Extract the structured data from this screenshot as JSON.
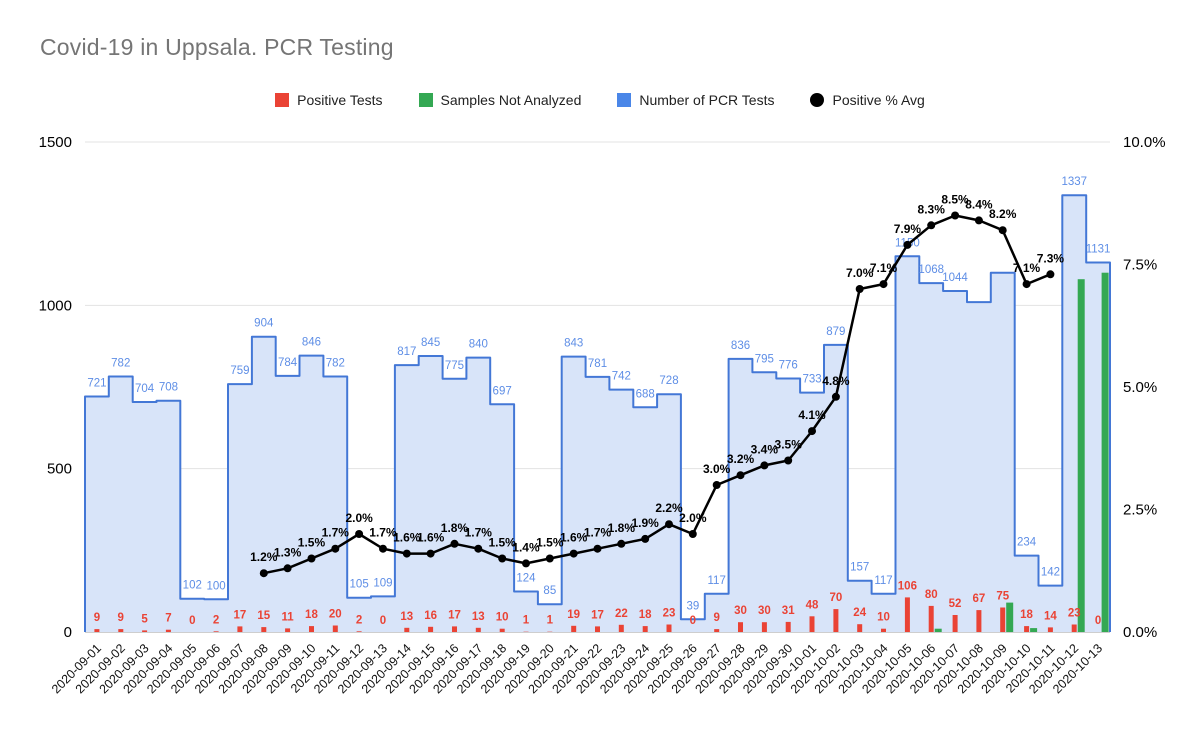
{
  "title": "Covid-19 in Uppsala. PCR Testing",
  "legend": {
    "items": [
      {
        "label": "Positive Tests",
        "color": "#ea4335",
        "shape": "square"
      },
      {
        "label": "Samples Not Analyzed",
        "color": "#34a853",
        "shape": "square"
      },
      {
        "label": "Number of PCR Tests",
        "color": "#4a86e8",
        "shape": "square"
      },
      {
        "label": "Positive % Avg",
        "color": "#000000",
        "shape": "circle"
      }
    ]
  },
  "chart_data": {
    "type": "combo",
    "title": "Covid-19 in Uppsala. PCR Testing",
    "legend_position": "top",
    "grid": "horizontal",
    "x": [
      "2020-09-01",
      "2020-09-02",
      "2020-09-03",
      "2020-09-04",
      "2020-09-05",
      "2020-09-06",
      "2020-09-07",
      "2020-09-08",
      "2020-09-09",
      "2020-09-10",
      "2020-09-11",
      "2020-09-12",
      "2020-09-13",
      "2020-09-14",
      "2020-09-15",
      "2020-09-16",
      "2020-09-17",
      "2020-09-18",
      "2020-09-19",
      "2020-09-20",
      "2020-09-21",
      "2020-09-22",
      "2020-09-23",
      "2020-09-24",
      "2020-09-25",
      "2020-09-26",
      "2020-09-27",
      "2020-09-28",
      "2020-09-29",
      "2020-09-30",
      "2020-10-01",
      "2020-10-02",
      "2020-10-03",
      "2020-10-04",
      "2020-10-05",
      "2020-10-06",
      "2020-10-07",
      "2020-10-08",
      "2020-10-09",
      "2020-10-10",
      "2020-10-11",
      "2020-10-12",
      "2020-10-13"
    ],
    "series": [
      {
        "key": "positive",
        "name": "Positive Tests",
        "type": "bar",
        "axis": "left",
        "color": "#ea4335",
        "values": [
          9,
          9,
          5,
          7,
          0,
          2,
          17,
          15,
          11,
          18,
          20,
          2,
          0,
          13,
          16,
          17,
          13,
          10,
          1,
          1,
          19,
          17,
          22,
          18,
          23,
          0,
          9,
          30,
          30,
          31,
          48,
          70,
          24,
          10,
          106,
          80,
          52,
          67,
          75,
          18,
          14,
          23,
          0
        ]
      },
      {
        "key": "not_analyzed",
        "name": "Samples Not Analyzed",
        "type": "bar",
        "axis": "left",
        "color": "#34a853",
        "values": [
          0,
          0,
          0,
          0,
          0,
          0,
          0,
          0,
          0,
          0,
          0,
          0,
          0,
          0,
          0,
          0,
          0,
          0,
          0,
          0,
          0,
          0,
          0,
          0,
          0,
          0,
          0,
          0,
          0,
          0,
          0,
          0,
          0,
          0,
          0,
          10,
          0,
          0,
          90,
          12,
          0,
          1080,
          1100
        ]
      },
      {
        "key": "pcr",
        "name": "Number of PCR Tests",
        "type": "stepped-area",
        "axis": "left",
        "color": "#4377d6",
        "fill": "#d8e4f9",
        "label_color": "#5e8ee6",
        "values": [
          721,
          782,
          704,
          708,
          102,
          100,
          759,
          904,
          784,
          846,
          782,
          105,
          109,
          817,
          845,
          775,
          840,
          697,
          124,
          85,
          843,
          781,
          742,
          688,
          728,
          39,
          117,
          836,
          795,
          776,
          733,
          879,
          157,
          117,
          1150,
          1068,
          1044,
          1010,
          1100,
          234,
          142,
          1337,
          1131
        ],
        "hidden_labels": [
          37,
          38
        ]
      },
      {
        "key": "positive_pct",
        "name": "Positive % Avg",
        "type": "line",
        "axis": "right",
        "color": "#000000",
        "values": [
          null,
          null,
          null,
          null,
          null,
          null,
          null,
          1.2,
          1.3,
          1.5,
          1.7,
          2.0,
          1.7,
          1.6,
          1.6,
          1.8,
          1.7,
          1.5,
          1.4,
          1.5,
          1.6,
          1.7,
          1.8,
          1.9,
          2.2,
          2.0,
          3.0,
          3.2,
          3.4,
          3.5,
          4.1,
          4.8,
          7.0,
          7.1,
          7.9,
          8.3,
          8.5,
          8.4,
          8.2,
          7.1,
          7.3,
          null,
          null
        ]
      }
    ],
    "left_axis": {
      "range": [
        0,
        1500
      ],
      "ticks": [
        0,
        500,
        1000,
        1500
      ],
      "tick_labels": [
        "0",
        "500",
        "1000",
        "1500"
      ]
    },
    "right_axis": {
      "range": [
        0,
        10
      ],
      "ticks": [
        0,
        2.5,
        5,
        7.5,
        10
      ],
      "tick_labels": [
        "0.0%",
        "2.5%",
        "5.0%",
        "7.5%",
        "10.0%"
      ]
    }
  }
}
